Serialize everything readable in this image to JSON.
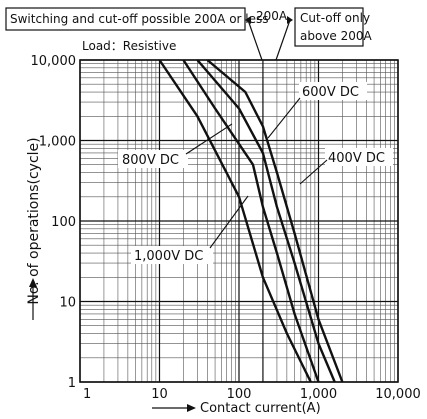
{
  "chart_data": {
    "type": "line",
    "x_scale": "log",
    "y_scale": "log",
    "xlim": [
      1,
      10000
    ],
    "ylim": [
      1,
      10000
    ],
    "xlabel": "Contact current(A)",
    "ylabel": "No. of operations(cycle)",
    "x_ticks": [
      "1",
      "10",
      "100",
      "1,000",
      "10,000"
    ],
    "y_ticks": [
      "1",
      "10",
      "100",
      "1,000",
      "10,000"
    ],
    "condition": "Load：Resistive",
    "grid": true,
    "annotations": {
      "left_region": "Switching and cut-off possible 200A or less",
      "boundary": "200A",
      "right_region_line1": "Cut-off only",
      "right_region_line2": "above 200A"
    },
    "series": [
      {
        "name": "400V DC",
        "x": [
          40,
          120,
          200,
          300,
          500,
          1000,
          2000
        ],
        "y": [
          10000,
          4000,
          1500,
          400,
          70,
          6,
          1
        ]
      },
      {
        "name": "600V DC",
        "x": [
          30,
          100,
          200,
          300,
          500,
          1000,
          1600
        ],
        "y": [
          10000,
          2500,
          700,
          150,
          30,
          3,
          1
        ]
      },
      {
        "name": "800V DC",
        "x": [
          20,
          50,
          150,
          200,
          300,
          500,
          1000
        ],
        "y": [
          10000,
          2500,
          500,
          150,
          40,
          7,
          1
        ]
      },
      {
        "name": "1,000V DC",
        "x": [
          10,
          30,
          100,
          200,
          400,
          800
        ],
        "y": [
          10000,
          2000,
          200,
          20,
          4,
          1
        ]
      }
    ]
  }
}
